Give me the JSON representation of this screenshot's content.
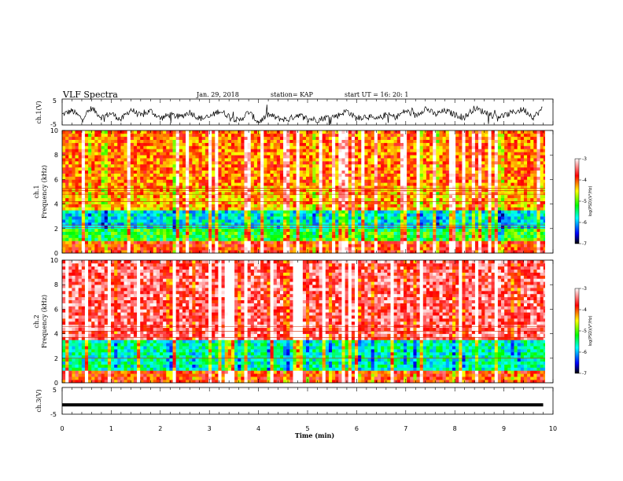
{
  "header": {
    "title": "VLF Spectra",
    "date": "Jan. 29, 2018",
    "station": "station= KAP",
    "start": "start  UT  =   16: 20: 1"
  },
  "chart_data": [
    {
      "type": "line",
      "panel": "ch1-waveform",
      "ylabel": "ch.1(V)",
      "ylim": [
        -5,
        5
      ],
      "yticks": [
        "5",
        "-5"
      ],
      "xlim": [
        0,
        10
      ],
      "color": "#000000",
      "x": [
        0,
        0.2,
        0.4,
        0.6,
        0.8,
        1.0,
        1.2,
        1.4,
        1.6,
        1.8,
        2.0,
        2.2,
        2.4,
        2.6,
        2.8,
        3.0,
        3.2,
        3.4,
        3.6,
        3.8,
        4.0,
        4.2,
        4.4,
        4.6,
        4.8,
        5.0,
        5.2,
        5.4,
        5.6,
        5.8,
        6.0,
        6.2,
        6.4,
        6.6,
        6.8,
        7.0,
        7.2,
        7.4,
        7.6,
        7.8,
        8.0,
        8.2,
        8.4,
        8.6,
        8.8,
        9.0,
        9.2,
        9.4,
        9.6,
        9.8
      ],
      "y": [
        -1.0,
        0.5,
        -2.5,
        1.5,
        -2.0,
        -0.5,
        -3.0,
        1.0,
        -1.5,
        0.5,
        -2.5,
        -1.0,
        -2.0,
        0.0,
        -2.5,
        -2.0,
        0.5,
        -1.5,
        -3.5,
        0.0,
        -4.0,
        -1.0,
        -2.5,
        -3.0,
        -1.0,
        -2.5,
        -3.0,
        -2.0,
        -1.5,
        0.5,
        -2.5,
        -1.5,
        -3.0,
        -1.0,
        -2.0,
        0.5,
        -1.5,
        1.5,
        -1.0,
        0.5,
        -1.0,
        -2.0,
        1.5,
        0.0,
        -1.5,
        -1.5,
        0.0,
        1.0,
        -2.0,
        1.5
      ]
    },
    {
      "type": "heatmap",
      "panel": "ch1-spectrogram",
      "title": "ch.1",
      "ylabel": "Frequency (kHz)",
      "ylim": [
        0,
        10
      ],
      "yticks": [
        "0",
        "2",
        "4",
        "6",
        "8",
        "10"
      ],
      "xlim": [
        0,
        10
      ],
      "colorbar": {
        "label": "log(PSD)(V²/Hz)",
        "range": [
          -7,
          -3
        ],
        "ticks": [
          "-3",
          "-4",
          "-5",
          "-6",
          "-7"
        ]
      },
      "frequency_bands_kHz": [
        0,
        1,
        2,
        3.5,
        5.5,
        10
      ],
      "band_log_psd": [
        -3.9,
        -5.2,
        -5.8,
        -4.3,
        -4.1
      ],
      "harmonic_lines_kHz": [
        5.3,
        5.1,
        4.8,
        2.3,
        2.1,
        4.2
      ]
    },
    {
      "type": "heatmap",
      "panel": "ch2-spectrogram",
      "title": "ch.2",
      "ylabel": "Frequency (kHz)",
      "ylim": [
        0,
        10
      ],
      "yticks": [
        "0",
        "2",
        "4",
        "6",
        "8",
        "10"
      ],
      "xlim": [
        0,
        10
      ],
      "colorbar": {
        "label": "log(PSD)(V²/Hz)",
        "range": [
          -7,
          -3
        ],
        "ticks": [
          "-3",
          "-4",
          "-5",
          "-6",
          "-7"
        ]
      },
      "frequency_bands_kHz": [
        0,
        1,
        3.5,
        10
      ],
      "band_log_psd": [
        -3.9,
        -5.6,
        -3.5
      ],
      "harmonic_lines_kHz": [
        4.6,
        4.2,
        3.7,
        2.0
      ]
    },
    {
      "type": "line",
      "panel": "ch3-waveform",
      "ylabel": "ch.3(V)",
      "ylim": [
        -5,
        5
      ],
      "yticks": [
        "5",
        "-5"
      ],
      "xlim": [
        0,
        10
      ],
      "xlabel": "Time (min)",
      "xticks": [
        "0",
        "1",
        "2",
        "3",
        "4",
        "5",
        "6",
        "7",
        "8",
        "9",
        "10"
      ],
      "x": [
        0,
        9.8
      ],
      "y": [
        -1.5,
        -1.5
      ]
    }
  ]
}
